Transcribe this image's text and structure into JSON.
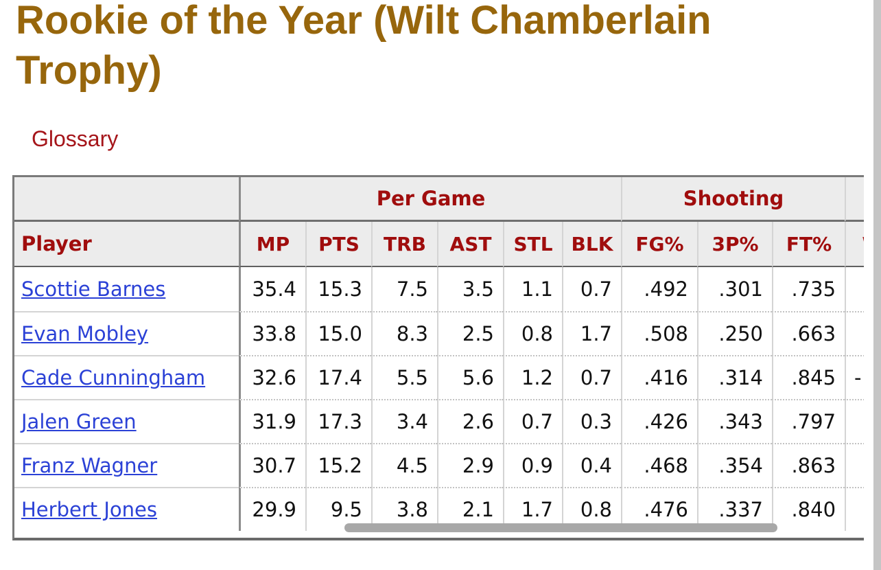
{
  "page": {
    "title": "Rookie of the Year (Wilt Chamberlain Trophy)",
    "glossary_label": "Glossary"
  },
  "colors": {
    "title_text": "#97660c",
    "table_header_text": "#a00d0d",
    "player_link": "#2b41d6",
    "header_bg": "#ececec",
    "scrollbar_thumb": "#a8a8a8"
  },
  "table": {
    "groups": [
      {
        "label": "",
        "span": 1
      },
      {
        "label": "Per Game",
        "span": 6
      },
      {
        "label": "Shooting",
        "span": 3
      },
      {
        "label": "",
        "span": 1
      }
    ],
    "columns": [
      "Player",
      "MP",
      "PTS",
      "TRB",
      "AST",
      "STL",
      "BLK",
      "FG%",
      "3P%",
      "FT%",
      "WS"
    ],
    "rows": [
      {
        "player": "Scottie Barnes",
        "values": [
          "35.4",
          "15.3",
          "7.5",
          "3.5",
          "1.1",
          "0.7",
          ".492",
          ".301",
          ".735",
          ""
        ]
      },
      {
        "player": "Evan Mobley",
        "values": [
          "33.8",
          "15.0",
          "8.3",
          "2.5",
          "0.8",
          "1.7",
          ".508",
          ".250",
          ".663",
          ""
        ]
      },
      {
        "player": "Cade Cunningham",
        "values": [
          "32.6",
          "17.4",
          "5.5",
          "5.6",
          "1.2",
          "0.7",
          ".416",
          ".314",
          ".845",
          "-"
        ]
      },
      {
        "player": "Jalen Green",
        "values": [
          "31.9",
          "17.3",
          "3.4",
          "2.6",
          "0.7",
          "0.3",
          ".426",
          ".343",
          ".797",
          ""
        ]
      },
      {
        "player": "Franz Wagner",
        "values": [
          "30.7",
          "15.2",
          "4.5",
          "2.9",
          "0.9",
          "0.4",
          ".468",
          ".354",
          ".863",
          ""
        ]
      },
      {
        "player": "Herbert Jones",
        "values": [
          "29.9",
          "9.5",
          "3.8",
          "2.1",
          "1.7",
          "0.8",
          ".476",
          ".337",
          ".840",
          ""
        ]
      }
    ]
  }
}
